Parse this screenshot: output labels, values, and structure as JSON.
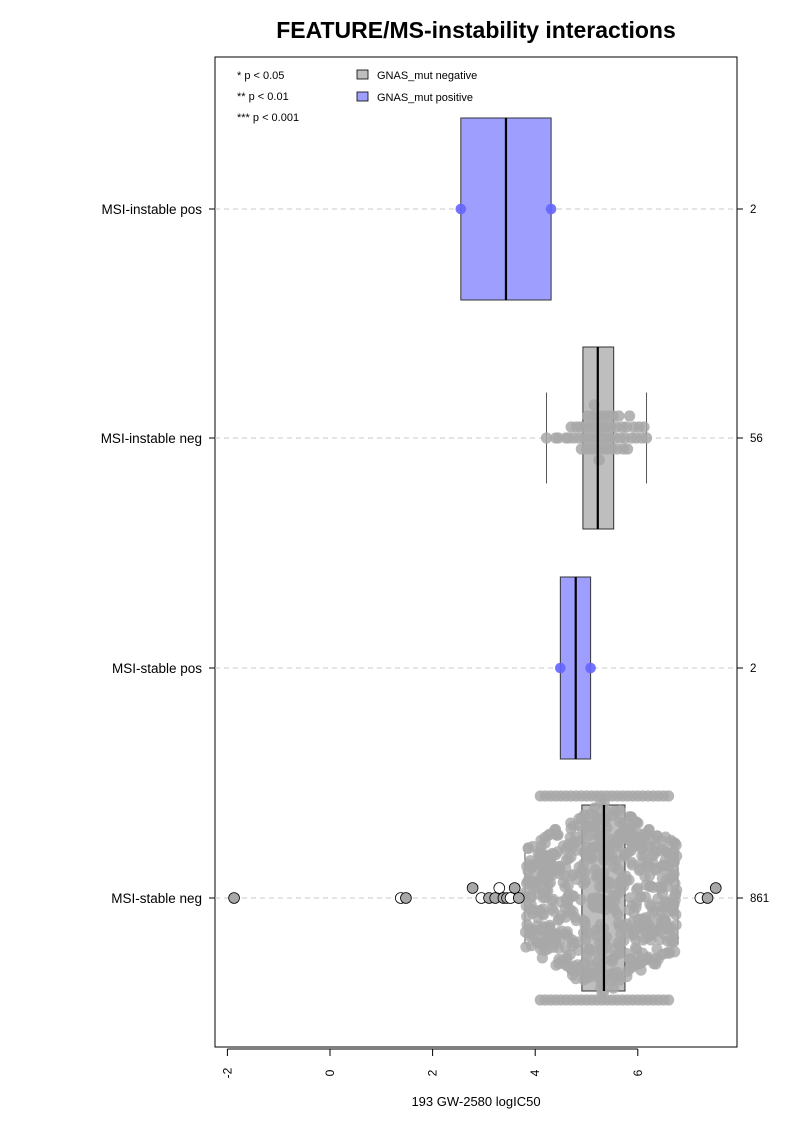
{
  "chart_data": {
    "type": "box",
    "title": "FEATURE/MS-instability interactions",
    "xlabel": "193 GW-2580 logIC50",
    "ylabel": "",
    "xlim": [
      -2.2,
      7.9
    ],
    "xticks": [
      -2,
      0,
      2,
      4,
      6
    ],
    "tick_labels": [
      "-2",
      "0",
      "2",
      "4",
      "6"
    ],
    "grid": "dashed horizontal line per group",
    "legend": {
      "position": "top-left",
      "significance": [
        "* p < 0.05",
        "** p < 0.01",
        "*** p < 0.001"
      ],
      "entries": [
        {
          "label": "GNAS_mut negative",
          "color": "#bebebe"
        },
        {
          "label": "GNAS_mut positive",
          "color": "#9e9eff"
        }
      ]
    },
    "colors": {
      "negative_box": "#bebebe",
      "negative_point": "#a8a8a8",
      "positive_box": "#9e9eff",
      "positive_point": "#6464ff"
    },
    "groups": [
      {
        "label": "MSI-instable pos",
        "n": "2",
        "mutation": "positive",
        "q1": 2.55,
        "median": 3.43,
        "q3": 4.31,
        "whisker_low": 2.55,
        "whisker_high": 4.31,
        "points": [
          2.55,
          4.31
        ],
        "outliers": []
      },
      {
        "label": "MSI-instable neg",
        "n": "56",
        "mutation": "negative",
        "q1": 4.93,
        "median": 5.22,
        "q3": 5.53,
        "whisker_low": 4.22,
        "whisker_high": 6.17,
        "points": [
          4.22,
          4.4,
          4.45,
          4.6,
          4.65,
          4.7,
          4.75,
          4.8,
          4.85,
          4.88,
          4.9,
          4.95,
          4.97,
          5.0,
          5.02,
          5.05,
          5.07,
          5.1,
          5.12,
          5.15,
          5.17,
          5.2,
          5.22,
          5.24,
          5.26,
          5.28,
          5.3,
          5.32,
          5.35,
          5.37,
          5.4,
          5.42,
          5.45,
          5.48,
          5.5,
          5.52,
          5.55,
          5.58,
          5.6,
          5.63,
          5.66,
          5.7,
          5.72,
          5.75,
          5.78,
          5.8,
          5.84,
          5.88,
          5.92,
          5.97,
          6.02,
          6.08,
          6.12,
          6.17,
          5.15,
          5.25
        ],
        "outliers": []
      },
      {
        "label": "MSI-stable pos",
        "n": "2",
        "mutation": "positive",
        "q1": 4.49,
        "median": 4.79,
        "q3": 5.08,
        "whisker_low": 4.49,
        "whisker_high": 5.08,
        "points": [
          4.49,
          5.08
        ],
        "outliers": []
      },
      {
        "label": "MSI-stable neg",
        "n": "861",
        "mutation": "negative",
        "q1": 4.91,
        "median": 5.34,
        "q3": 5.75,
        "whisker_low": 3.8,
        "whisker_high": 6.78,
        "point_range": [
          3.8,
          6.78
        ],
        "outliers": [
          -1.87,
          1.38,
          1.48,
          2.78,
          2.95,
          3.1,
          3.22,
          3.3,
          3.38,
          3.45,
          3.52,
          3.6,
          3.68,
          7.22,
          7.36,
          7.52
        ]
      }
    ]
  }
}
